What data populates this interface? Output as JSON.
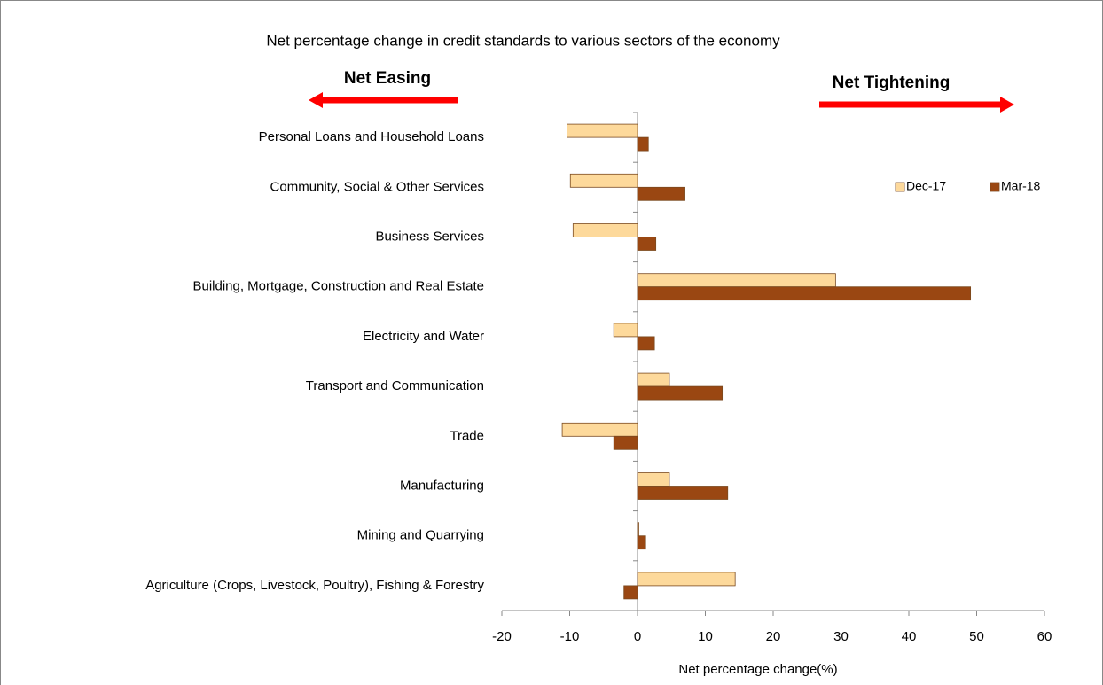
{
  "chart_data": {
    "type": "hbar",
    "title": "Net percentage change in credit standards to various sectors of the economy",
    "annotations": [
      "Net Easing",
      "Net Tightening"
    ],
    "x_label": "Net percentage change(%)",
    "categories": [
      "Personal Loans and Household Loans",
      "Community, Social & Other Services",
      "Business Services",
      "Building, Mortgage, Construction and Real Estate",
      "Electricity and Water",
      "Transport and Communication",
      "Trade",
      "Manufacturing",
      "Mining and Quarrying",
      "Agriculture (Crops, Livestock, Poultry), Fishing & Forestry"
    ],
    "series": [
      {
        "name": "Dec-17",
        "color": "#fdd99b",
        "values": [
          -10.4,
          -9.9,
          -9.5,
          29.2,
          -3.5,
          4.7,
          -11.1,
          4.7,
          0.2,
          14.4
        ]
      },
      {
        "name": "Mar-18",
        "color": "#9a4712",
        "values": [
          1.6,
          7.0,
          2.7,
          49.1,
          2.5,
          12.5,
          -3.5,
          13.3,
          1.2,
          -2.0
        ]
      }
    ],
    "xlim": [
      -20,
      60
    ],
    "xticks": [
      -20,
      -10,
      0,
      10,
      20,
      30,
      40,
      50,
      60
    ],
    "legend": "upper right",
    "grid": false
  }
}
